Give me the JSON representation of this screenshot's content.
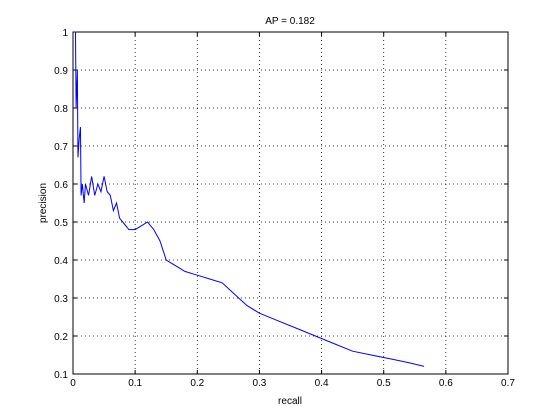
{
  "chart_data": {
    "type": "line",
    "title": "AP = 0.182",
    "x_label": "recall",
    "y_label": "precision",
    "x": [
      0.002,
      0.004,
      0.005,
      0.007,
      0.008,
      0.01,
      0.012,
      0.013,
      0.015,
      0.018,
      0.02,
      0.025,
      0.03,
      0.035,
      0.04,
      0.045,
      0.05,
      0.055,
      0.06,
      0.065,
      0.07,
      0.075,
      0.08,
      0.09,
      0.1,
      0.11,
      0.12,
      0.13,
      0.14,
      0.15,
      0.16,
      0.17,
      0.18,
      0.2,
      0.22,
      0.24,
      0.26,
      0.28,
      0.3,
      0.33,
      0.36,
      0.39,
      0.42,
      0.45,
      0.48,
      0.51,
      0.54,
      0.565
    ],
    "values": [
      1.0,
      1.0,
      0.8,
      0.9,
      0.67,
      0.72,
      0.75,
      0.57,
      0.6,
      0.55,
      0.6,
      0.57,
      0.62,
      0.57,
      0.6,
      0.58,
      0.62,
      0.58,
      0.57,
      0.53,
      0.55,
      0.51,
      0.5,
      0.48,
      0.48,
      0.49,
      0.5,
      0.48,
      0.45,
      0.4,
      0.39,
      0.38,
      0.37,
      0.36,
      0.35,
      0.34,
      0.31,
      0.28,
      0.26,
      0.24,
      0.22,
      0.2,
      0.18,
      0.16,
      0.15,
      0.14,
      0.13,
      0.12
    ],
    "color": "#0000ff",
    "xlim": [
      0,
      0.7
    ],
    "xticks": [
      0,
      0.1,
      0.2,
      0.3,
      0.4,
      0.5,
      0.6,
      0.7
    ],
    "ylim": [
      0.1,
      1
    ],
    "yticks": [
      0.1,
      0.2,
      0.3,
      0.4,
      0.5,
      0.6,
      0.7,
      0.8,
      0.9,
      1
    ],
    "grid": true
  }
}
